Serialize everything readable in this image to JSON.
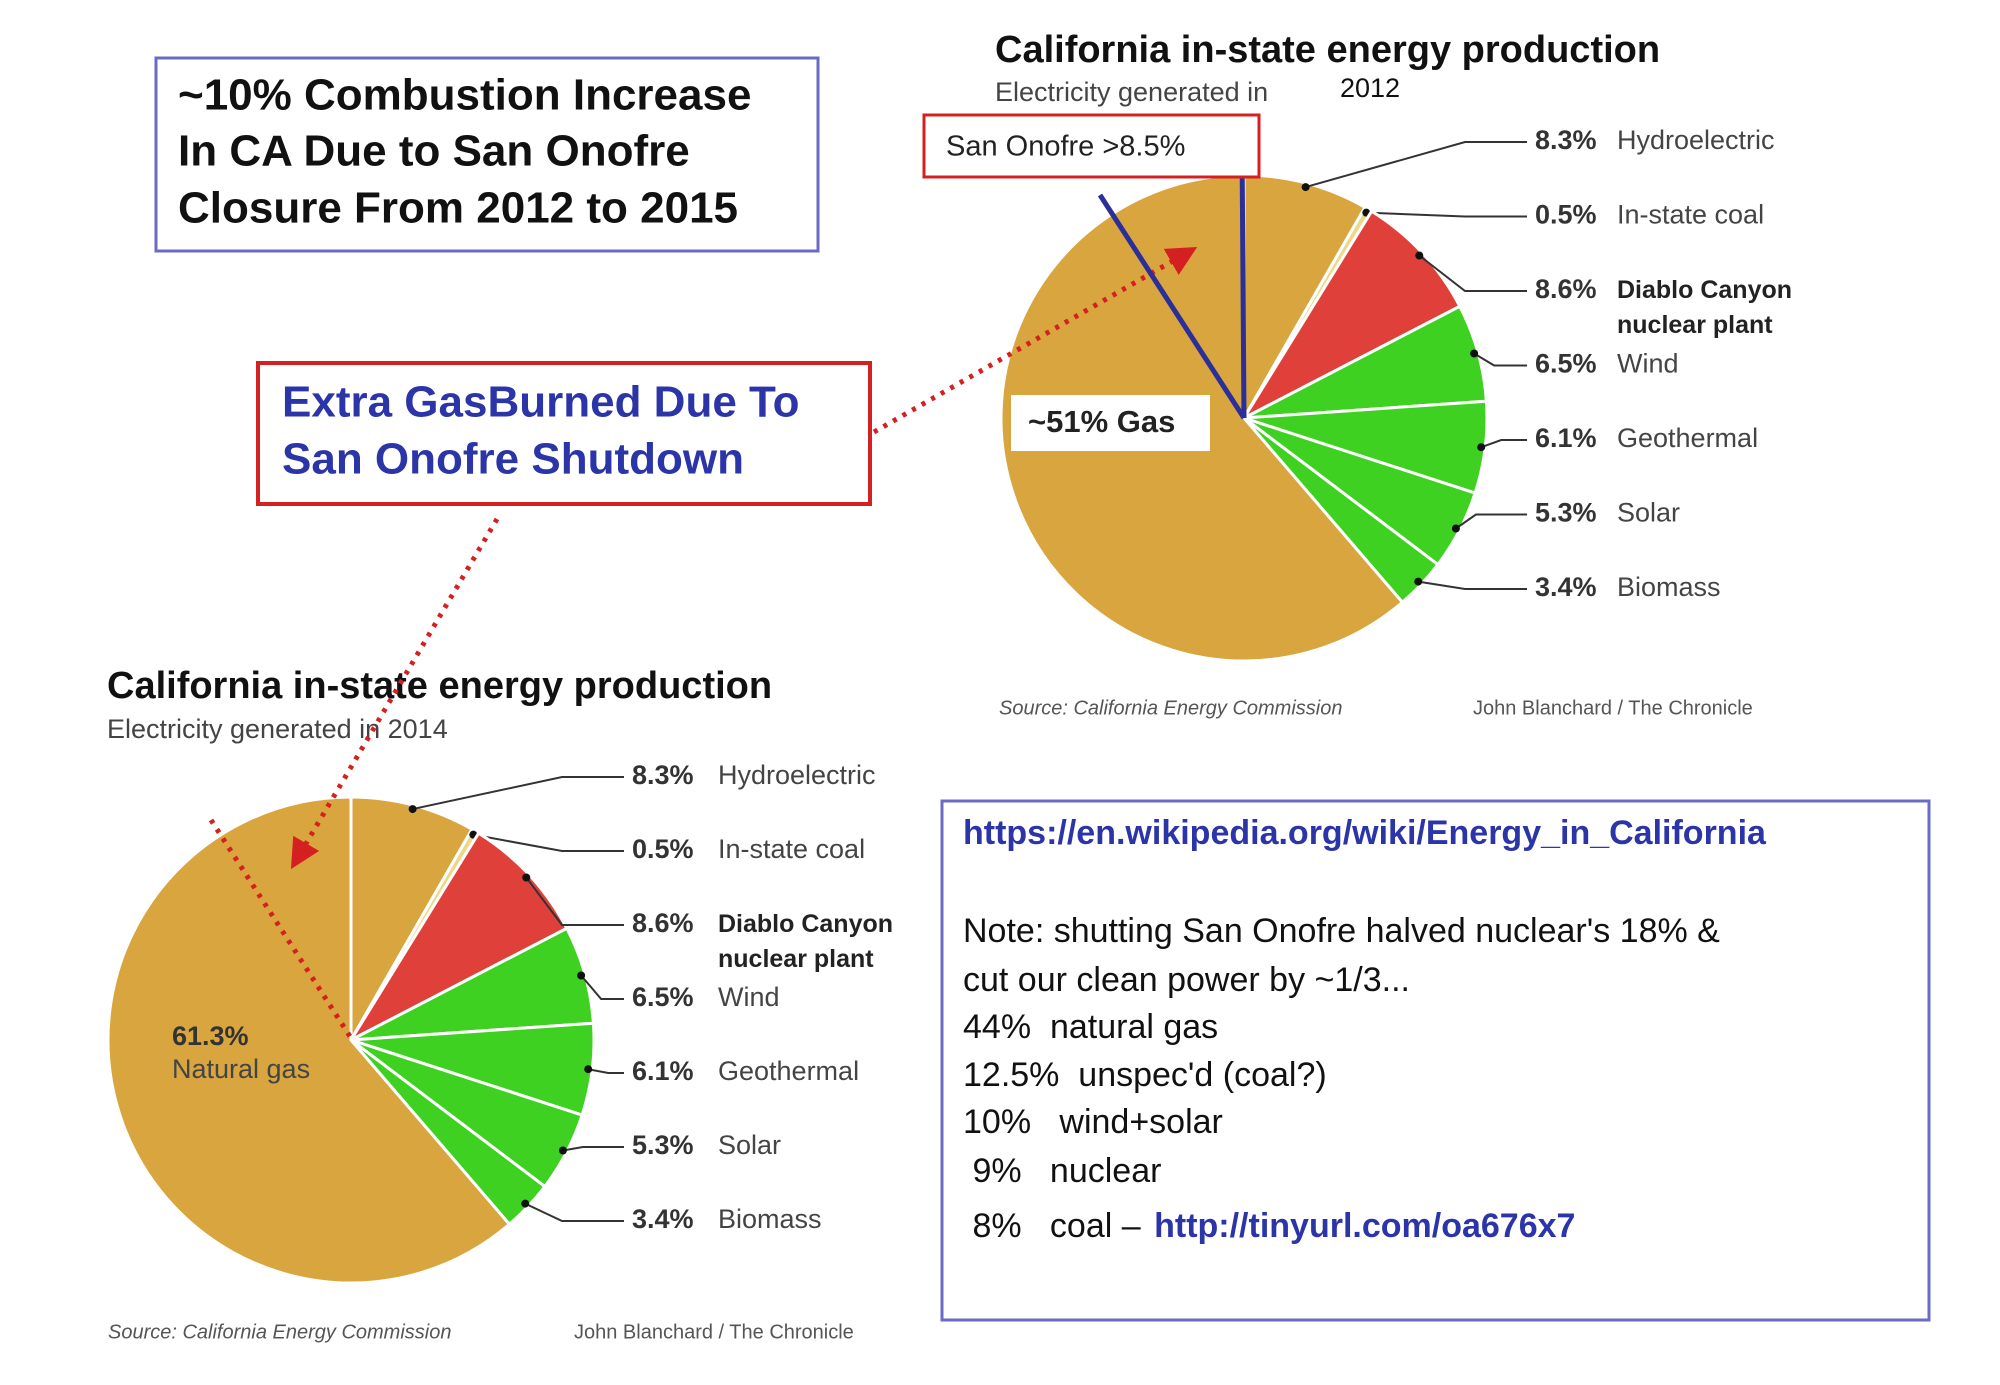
{
  "chart_data": [
    {
      "type": "pie",
      "title": "California in-state energy production",
      "subtitle": "Electricity generated in",
      "categories": [
        "Hydroelectric",
        "In-state coal",
        "Diablo Canyon nuclear plant",
        "Wind",
        "Geothermal",
        "Solar",
        "Biomass",
        null
      ],
      "values": [
        8.3,
        0.5,
        8.6,
        6.5,
        6.1,
        5.3,
        3.4,
        61.3
      ],
      "value_labels": [
        "8.3%",
        "0.5%",
        "8.6%",
        "6.5%",
        "6.1%",
        "5.3%",
        "3.4%",
        null
      ],
      "colors": [
        "#d8a53f",
        "#ebd98a",
        "#e0403a",
        "#3fd122",
        "#3fd122",
        "#3fd122",
        "#3fd122",
        "#d8a53f"
      ],
      "source": "Source: California Energy Commission",
      "credit": "John Blanchard / The Chronicle"
    },
    {
      "type": "pie",
      "title": "California in-state energy production",
      "subtitle": "Electricity generated in 2014",
      "categories": [
        "Hydroelectric",
        "In-state coal",
        "Diablo Canyon nuclear plant",
        "Wind",
        "Geothermal",
        "Solar",
        "Biomass",
        "Natural gas"
      ],
      "values": [
        8.3,
        0.5,
        8.6,
        6.5,
        6.1,
        5.3,
        3.4,
        61.3
      ],
      "value_labels": [
        "8.3%",
        "0.5%",
        "8.6%",
        "6.5%",
        "6.1%",
        "5.3%",
        "3.4%",
        "61.3%"
      ],
      "colors": [
        "#d8a53f",
        "#ebd98a",
        "#e0403a",
        "#3fd122",
        "#3fd122",
        "#3fd122",
        "#3fd122",
        "#d8a53f"
      ],
      "source": "Source: California Energy Commission",
      "credit": "John Blanchard / The Chronicle"
    }
  ],
  "annotations": {
    "combustion_box": [
      "~10% Combustion Increase",
      "In CA Due to San Onofre",
      "Closure From 2012 to 2015"
    ],
    "gas_box": [
      "Extra GasBurned Due To",
      "San Onofre Shutdown"
    ],
    "san_onofre": "San Onofre >8.5%",
    "gas_overlay": "~51% Gas",
    "year_overlay": "2012"
  },
  "note_box": {
    "url": "https://en.wikipedia.org/wiki/Energy_in_California",
    "lines": [
      "Note: shutting San Onofre halved nuclear's 18% &",
      "cut our clean power by ~1/3...",
      "44%  natural gas",
      "12.5%  unspec'd (coal?)",
      "10%   wind+solar",
      " 9%   nuclear",
      " 8%   coal – "
    ],
    "link": "http://tinyurl.com/oa676x7"
  }
}
